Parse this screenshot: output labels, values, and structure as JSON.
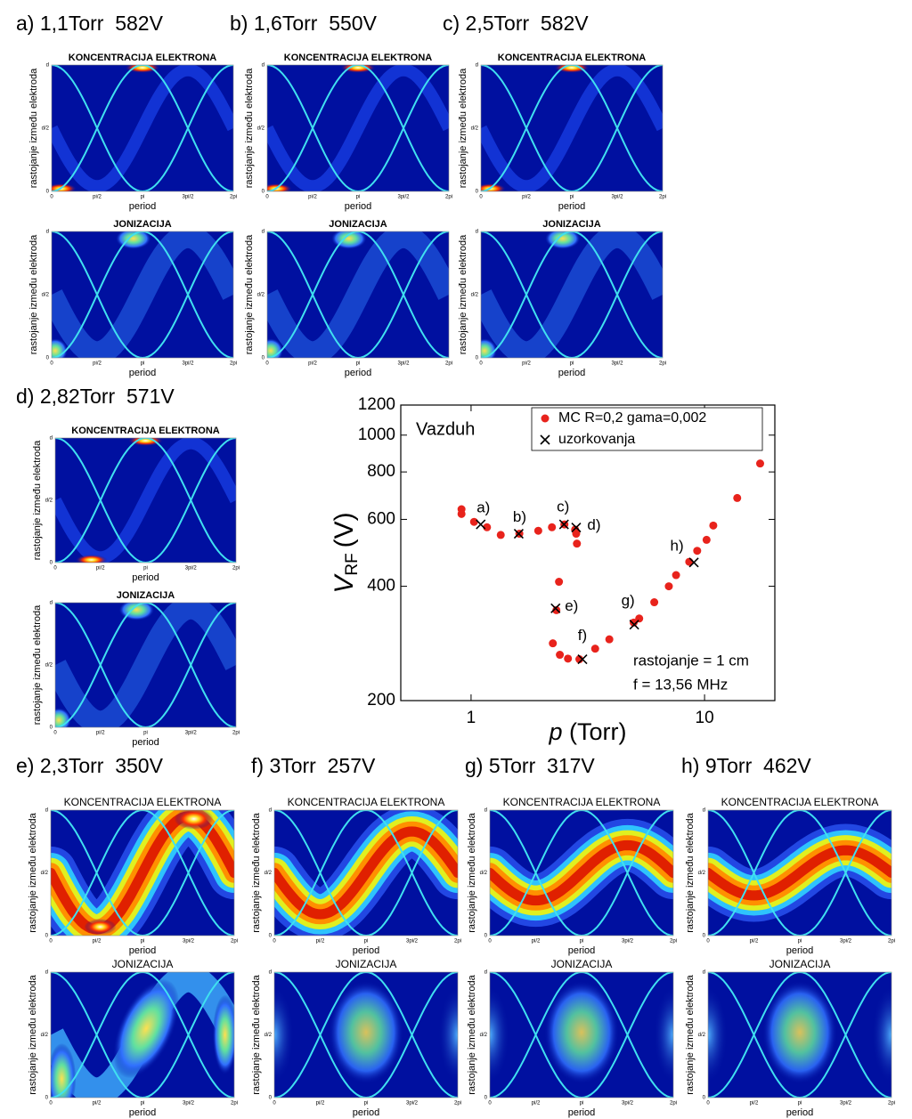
{
  "panels": [
    {
      "label": "a) 1,1Torr  582V"
    },
    {
      "label": "b) 1,6Torr  550V"
    },
    {
      "label": "c) 2,5Torr  582V"
    },
    {
      "label": "d) 2,82Torr  571V"
    },
    {
      "label": "e) 2,3Torr  350V"
    },
    {
      "label": "f) 3Torr  257V"
    },
    {
      "label": "g) 5Torr  317V"
    },
    {
      "label": "h) 9Torr  462V"
    }
  ],
  "subplot": {
    "top_title": "KONCENTRACIJA ELEKTRONA",
    "bottom_title": "JONIZACIJA",
    "ylabel": "rastojanje između elektroda",
    "xlabel": "period",
    "xticks": [
      "0",
      "pi/2",
      "pi",
      "3pi/2",
      "2pi"
    ],
    "yticks": [
      "0",
      "d/2",
      "d"
    ]
  },
  "chart_data": {
    "type": "scatter",
    "xlabel": {
      "main": "p",
      "unit": "(Torr)"
    },
    "ylabel": {
      "main": "V",
      "sub": "RF",
      "unit": "(V)"
    },
    "annotations": [
      "Vazduh",
      "rastojanje = 1 cm",
      "f = 13,56 MHz"
    ],
    "xlog": true,
    "ylog": true,
    "xlim": [
      0.5,
      20
    ],
    "ylim": [
      200,
      1200
    ],
    "xticks": [
      1,
      10
    ],
    "yticks": [
      200,
      400,
      600,
      800,
      1000,
      1200
    ],
    "legend": "upper right",
    "series": [
      {
        "name": "MC R=0,2 gama=0,002",
        "color": "#e8231c",
        "marker": "dot",
        "x": [
          0.91,
          0.91,
          1.03,
          1.17,
          1.34,
          1.61,
          1.94,
          2.22,
          2.51,
          2.79,
          2.84,
          2.82,
          2.38,
          2.32,
          2.24,
          2.4,
          2.6,
          2.91,
          3.4,
          3.91,
          4.97,
          5.25,
          6.09,
          7.03,
          7.55,
          8.6,
          9.3,
          10.2,
          10.9,
          13.8,
          17.3
        ],
        "values": [
          638,
          620,
          591,
          572,
          546,
          550,
          560,
          572,
          582,
          564,
          518,
          550,
          411,
          346,
          283,
          264,
          258,
          257,
          274,
          290,
          321,
          329,
          363,
          400,
          428,
          464,
          496,
          530,
          578,
          683,
          842
        ]
      },
      {
        "name": "uzorkovanja",
        "color": "#000000",
        "marker": "cross",
        "x": [
          1.1,
          1.6,
          2.5,
          2.82,
          2.3,
          3,
          5,
          9
        ],
        "values": [
          582,
          550,
          582,
          571,
          350,
          257,
          317,
          462
        ],
        "point_labels": [
          "a)",
          "b)",
          "c)",
          "d)",
          "e)",
          "f)",
          "g)",
          "h)"
        ]
      }
    ]
  }
}
